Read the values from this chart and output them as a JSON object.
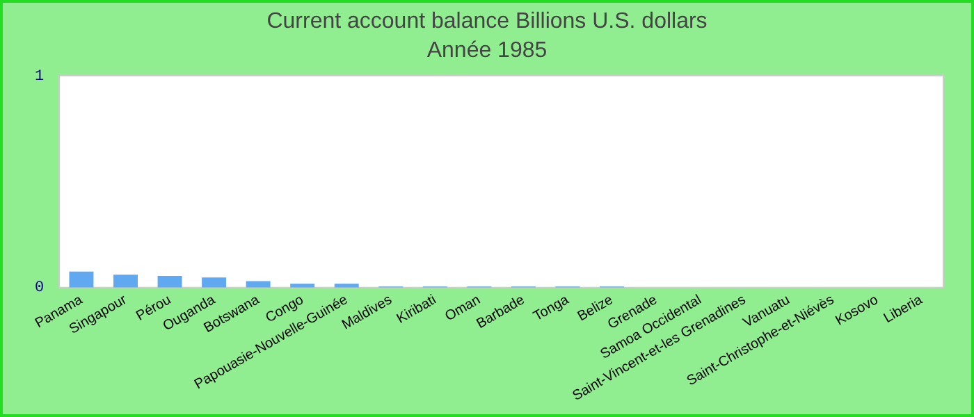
{
  "chart_data": {
    "type": "bar",
    "title": "Current account balance Billions U.S. dollars",
    "subtitle": "Année 1985",
    "categories": [
      "Panama",
      "Singapour",
      "Pérou",
      "Ouganda",
      "Botswana",
      "Congo",
      "Papouasie-Nouvelle-Guinée",
      "Maldives",
      "Kiribati",
      "Oman",
      "Barbade",
      "Tonga",
      "Belize",
      "Grenade",
      "Samoa Occidental",
      "Saint-Vincent-et-les Grenadines",
      "Vanuatu",
      "Saint-Christophe-et-Niévès",
      "Kosovo",
      "Liberia"
    ],
    "values": [
      0.075,
      0.06,
      0.055,
      0.047,
      0.03,
      0.018,
      0.018,
      0.005,
      0.005,
      0.005,
      0.005,
      0.005,
      0.005,
      0,
      0,
      0,
      0,
      0,
      0,
      0
    ],
    "color": "#60a8f0",
    "ylim": [
      0,
      1
    ],
    "yticks": [
      0,
      1
    ],
    "grid": false,
    "legend": false
  }
}
